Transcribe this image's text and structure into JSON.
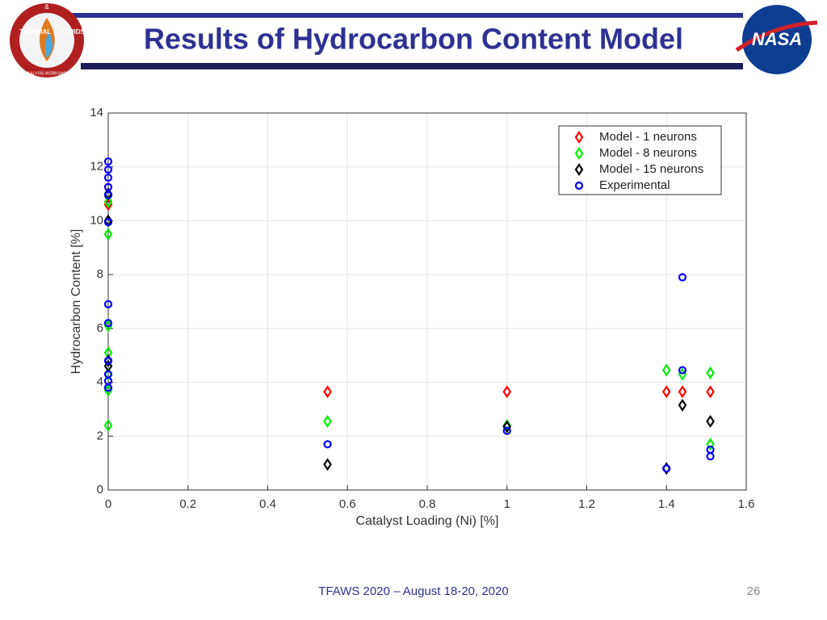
{
  "slide": {
    "title": "Results of Hydrocarbon Content Model",
    "footer": "TFAWS 2020 – August 18-20, 2020",
    "page_number": "26",
    "left_logo": {
      "top": "THERMAL",
      "mid": "&",
      "right": "FLUIDS",
      "bottom": "ANALYSIS WORKSHOP"
    },
    "right_logo": "NASA"
  },
  "chart_data": {
    "type": "scatter",
    "xlabel": "Catalyst Loading (Ni) [%]",
    "ylabel": "Hydrocarbon Content [%]",
    "xlim": [
      0,
      1.6
    ],
    "xticks": [
      0,
      0.2,
      0.4,
      0.6,
      0.8,
      1,
      1.2,
      1.4,
      1.6
    ],
    "ylim": [
      0,
      14
    ],
    "yticks": [
      0,
      2,
      4,
      6,
      8,
      10,
      12,
      14
    ],
    "grid": true,
    "legend": "upper right",
    "series": [
      {
        "name": "Model - 1 neurons",
        "color": "#ff0000",
        "marker": "diamond",
        "x": [
          0,
          0.55,
          1,
          1.4,
          1.44,
          1.51
        ],
        "values": [
          10.6,
          3.65,
          3.65,
          3.65,
          3.65,
          3.65
        ]
      },
      {
        "name": "Model - 8 neurons",
        "color": "#00ee00",
        "marker": "diamond",
        "x": [
          0,
          0,
          0,
          0,
          0,
          0,
          0,
          0.55,
          1,
          1.4,
          1.44,
          1.51,
          1.51
        ],
        "values": [
          10.7,
          9.5,
          6.1,
          5.1,
          4.3,
          3.7,
          2.4,
          2.55,
          2.4,
          4.45,
          4.3,
          4.35,
          1.7
        ]
      },
      {
        "name": "Model - 15 neurons",
        "color": "#000000",
        "marker": "diamond",
        "x": [
          0,
          0,
          0,
          0,
          0.55,
          1,
          1.4,
          1.44,
          1.51
        ],
        "values": [
          11.0,
          10.0,
          4.8,
          4.6,
          0.95,
          2.35,
          0.8,
          3.15,
          2.55
        ]
      },
      {
        "name": "Experimental",
        "color": "#0000ff",
        "marker": "circle",
        "x": [
          0,
          0,
          0,
          0,
          0,
          0,
          0,
          0,
          0,
          0,
          0,
          0,
          0.55,
          1,
          1.4,
          1.44,
          1.44,
          1.51,
          1.51
        ],
        "values": [
          12.2,
          11.9,
          11.6,
          11.25,
          10.95,
          9.95,
          6.9,
          6.2,
          4.8,
          4.3,
          4.05,
          3.8,
          1.7,
          2.2,
          0.8,
          7.9,
          4.45,
          1.5,
          1.25
        ]
      }
    ]
  }
}
